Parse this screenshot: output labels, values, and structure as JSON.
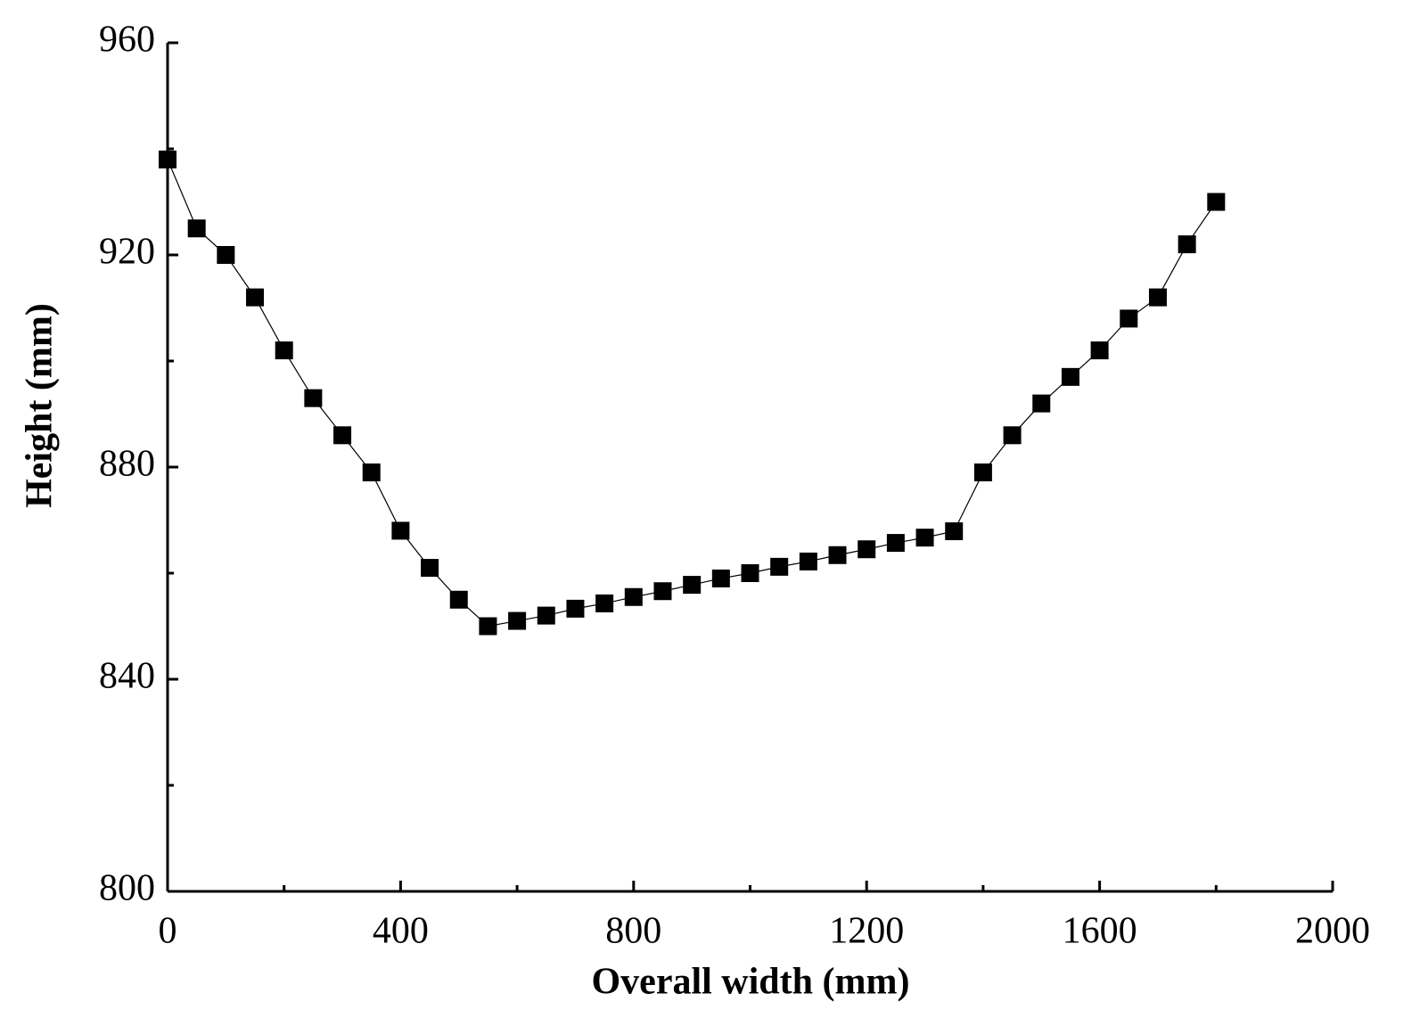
{
  "chart_data": {
    "type": "line",
    "x_label": "Overall width (mm)",
    "y_label": "Height (mm)",
    "x": [
      0,
      50,
      100,
      150,
      200,
      250,
      300,
      350,
      400,
      450,
      500,
      550,
      600,
      650,
      700,
      750,
      800,
      850,
      900,
      950,
      1000,
      1050,
      1100,
      1150,
      1200,
      1250,
      1300,
      1350,
      1400,
      1450,
      1500,
      1550,
      1600,
      1650,
      1700,
      1750,
      1800
    ],
    "series": [
      {
        "color": "#000000",
        "marker": "square",
        "values": [
          938,
          925,
          920,
          912,
          902,
          893,
          886,
          879,
          868,
          861,
          855,
          850,
          851,
          852,
          853.3,
          854.3,
          855.5,
          856.6,
          857.8,
          859,
          860,
          861.2,
          862.2,
          863.4,
          864.5,
          865.7,
          866.7,
          867.9,
          879,
          886,
          892,
          897,
          902,
          908,
          912,
          922,
          930
        ]
      }
    ],
    "xlim": [
      0,
      2000
    ],
    "xticks": [
      0,
      400,
      800,
      1200,
      1600,
      2000
    ],
    "xminorticks": [
      200,
      600,
      1000,
      1400,
      1800
    ],
    "ylim": [
      800,
      960
    ],
    "yticks": [
      800,
      840,
      880,
      920,
      960
    ],
    "yminorticks": [
      820,
      860,
      900,
      940
    ],
    "grid": false
  }
}
